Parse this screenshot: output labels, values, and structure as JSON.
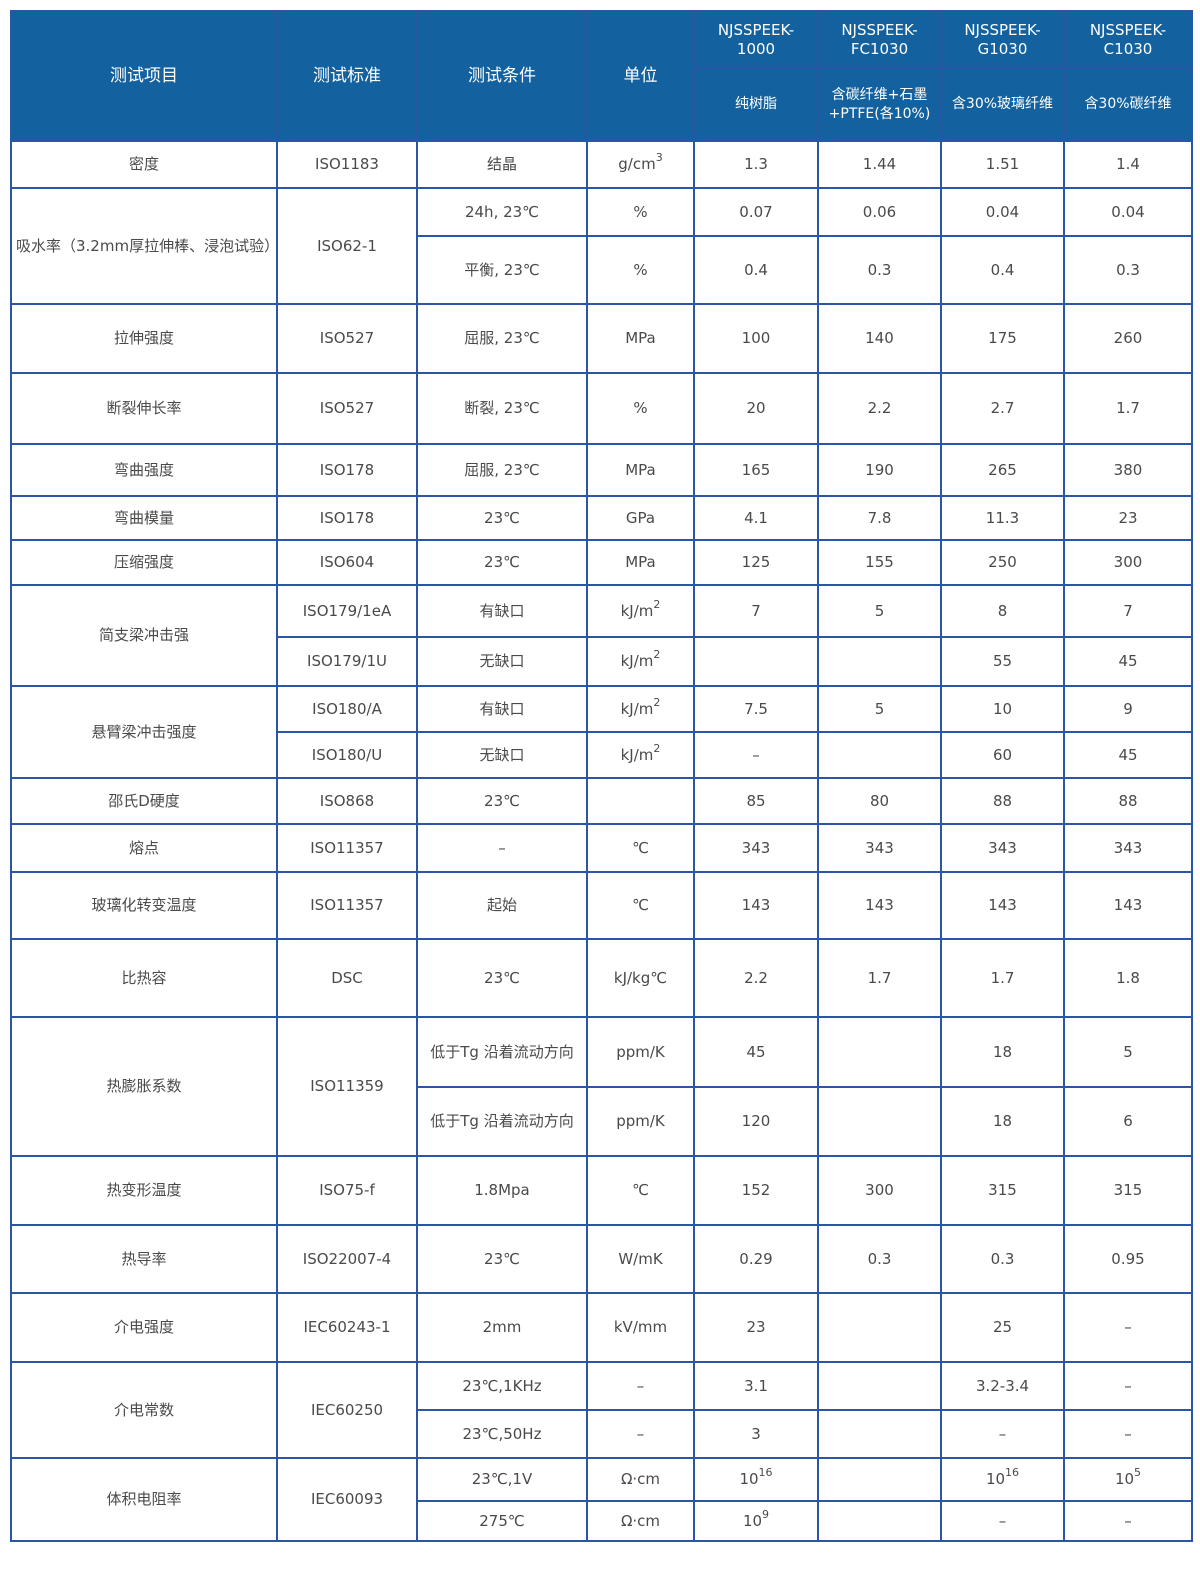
{
  "header": {
    "columns": [
      "测试项目",
      "测试标准",
      "测试条件",
      "单位"
    ],
    "grades": [
      {
        "name": "NJSSPEEK-1000",
        "desc": "纯树脂"
      },
      {
        "name": "NJSSPEEK-FC1030",
        "desc": "含碳纤维+石墨+PTFE(各10%)"
      },
      {
        "name": "NJSSPEEK-G1030",
        "desc": "含30%玻璃纤维"
      },
      {
        "name": "NJSSPEEK-C1030",
        "desc": "含30%碳纤维"
      }
    ]
  },
  "colors": {
    "header_bg": "#13629f",
    "border": "#2b56a6",
    "text": "#4a4a4a"
  },
  "rows": [
    {
      "item": "密度",
      "standard": "ISO1183",
      "sub": [
        {
          "condition": "结晶",
          "unit": "g/cm^3",
          "values": [
            "1.3",
            "1.44",
            "1.51",
            "1.4"
          ]
        }
      ]
    },
    {
      "item": "吸水率（3.2mm厚拉伸棒、浸泡试验）",
      "standard": "ISO62-1",
      "sub": [
        {
          "condition": "24h, 23℃",
          "unit": "%",
          "values": [
            "0.07",
            "0.06",
            "0.04",
            "0.04"
          ]
        },
        {
          "condition": "平衡, 23℃",
          "unit": "%",
          "values": [
            "0.4",
            "0.3",
            "0.4",
            "0.3"
          ]
        }
      ]
    },
    {
      "item": "拉伸强度",
      "standard": "ISO527",
      "sub": [
        {
          "condition": "屈服, 23℃",
          "unit": "MPa",
          "values": [
            "100",
            "140",
            "175",
            "260"
          ]
        }
      ]
    },
    {
      "item": "断裂伸长率",
      "standard": "ISO527",
      "sub": [
        {
          "condition": "断裂, 23℃",
          "unit": "%",
          "values": [
            "20",
            "2.2",
            "2.7",
            "1.7"
          ]
        }
      ]
    },
    {
      "item": "弯曲强度",
      "standard": "ISO178",
      "sub": [
        {
          "condition": "屈服, 23℃",
          "unit": "MPa",
          "values": [
            "165",
            "190",
            "265",
            "380"
          ]
        }
      ]
    },
    {
      "item": "弯曲模量",
      "standard": "ISO178",
      "sub": [
        {
          "condition": "23℃",
          "unit": "GPa",
          "values": [
            "4.1",
            "7.8",
            "11.3",
            "23"
          ]
        }
      ]
    },
    {
      "item": "压缩强度",
      "standard": "ISO604",
      "sub": [
        {
          "condition": "23℃",
          "unit": "MPa",
          "values": [
            "125",
            "155",
            "250",
            "300"
          ]
        }
      ]
    },
    {
      "item": "简支梁冲击强",
      "standard": null,
      "sub": [
        {
          "standard": "ISO179/1eA",
          "condition": "有缺口",
          "unit": "kJ/m^2",
          "values": [
            "7",
            "5",
            "8",
            "7"
          ]
        },
        {
          "standard": "ISO179/1U",
          "condition": "无缺口",
          "unit": "kJ/m^2",
          "values": [
            "",
            "",
            "55",
            "45"
          ]
        }
      ]
    },
    {
      "item": "悬臂梁冲击强度",
      "standard": null,
      "sub": [
        {
          "standard": "ISO180/A",
          "condition": "有缺口",
          "unit": "kJ/m^2",
          "values": [
            "7.5",
            "5",
            "10",
            "9"
          ]
        },
        {
          "standard": "ISO180/U",
          "condition": "无缺口",
          "unit": "kJ/m^2",
          "values": [
            "–",
            "",
            "60",
            "45"
          ]
        }
      ]
    },
    {
      "item": "邵氏D硬度",
      "standard": "ISO868",
      "sub": [
        {
          "condition": "23℃",
          "unit": "",
          "values": [
            "85",
            "80",
            "88",
            "88"
          ]
        }
      ]
    },
    {
      "item": "熔点",
      "standard": "ISO11357",
      "sub": [
        {
          "condition": "–",
          "unit": "℃",
          "values": [
            "343",
            "343",
            "343",
            "343"
          ]
        }
      ]
    },
    {
      "item": "玻璃化转变温度",
      "standard": "ISO11357",
      "sub": [
        {
          "condition": "起始",
          "unit": "℃",
          "values": [
            "143",
            "143",
            "143",
            "143"
          ]
        }
      ]
    },
    {
      "item": "比热容",
      "standard": "DSC",
      "sub": [
        {
          "condition": "23℃",
          "unit": "kJ/kg℃",
          "values": [
            "2.2",
            "1.7",
            "1.7",
            "1.8"
          ]
        }
      ]
    },
    {
      "item": "热膨胀系数",
      "standard": "ISO11359",
      "sub": [
        {
          "condition": "低于Tg 沿着流动方向",
          "unit": "ppm/K",
          "values": [
            "45",
            "",
            "18",
            "5"
          ]
        },
        {
          "condition": "低于Tg 沿着流动方向",
          "unit": "ppm/K",
          "values": [
            "120",
            "",
            "18",
            "6"
          ]
        }
      ]
    },
    {
      "item": "热变形温度",
      "standard": "ISO75-f",
      "sub": [
        {
          "condition": "1.8Mpa",
          "unit": "℃",
          "values": [
            "152",
            "300",
            "315",
            "315"
          ]
        }
      ]
    },
    {
      "item": "热导率",
      "standard": "ISO22007-4",
      "sub": [
        {
          "condition": "23℃",
          "unit": "W/mK",
          "values": [
            "0.29",
            "0.3",
            "0.3",
            "0.95"
          ]
        }
      ]
    },
    {
      "item": "介电强度",
      "standard": "IEC60243-1",
      "sub": [
        {
          "condition": "2mm",
          "unit": "kV/mm",
          "values": [
            "23",
            "",
            "25",
            "–"
          ]
        }
      ]
    },
    {
      "item": "介电常数",
      "standard": "IEC60250",
      "sub": [
        {
          "condition": "23℃,1KHz",
          "unit": "–",
          "values": [
            "3.1",
            "",
            "3.2-3.4",
            "–"
          ]
        },
        {
          "condition": "23℃,50Hz",
          "unit": "–",
          "values": [
            "3",
            "",
            "–",
            "–"
          ]
        }
      ]
    },
    {
      "item": "体积电阻率",
      "standard": "IEC60093",
      "sub": [
        {
          "condition": "23℃,1V",
          "unit": "Ω·cm",
          "values": [
            "10^16",
            "",
            "10^16",
            "10^5"
          ]
        },
        {
          "condition": "275℃",
          "unit": "Ω·cm",
          "values": [
            "10^9",
            "",
            "–",
            "–"
          ]
        }
      ]
    }
  ]
}
